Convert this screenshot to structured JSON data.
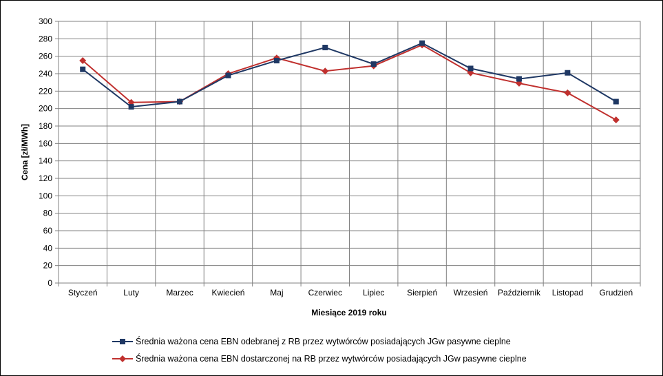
{
  "chart_data": {
    "type": "line",
    "xlabel": "Miesiące 2019  roku",
    "ylabel": "Cena [zł/MWh]",
    "ylim": [
      0,
      300
    ],
    "ytick_step": 20,
    "grid": true,
    "legend_position": "bottom",
    "categories": [
      "Styczeń",
      "Luty",
      "Marzec",
      "Kwiecień",
      "Maj",
      "Czerwiec",
      "Lipiec",
      "Sierpień",
      "Wrzesień",
      "Październik",
      "Listopad",
      "Grudzień"
    ],
    "series": [
      {
        "name": "Średnia ważona cena EBN odebranej z RB przez wytwórców posiadających JGw pasywne cieplne",
        "color": "#1f3864",
        "marker": "square",
        "values": [
          245,
          202,
          208,
          238,
          255,
          270,
          251,
          275,
          246,
          234,
          241,
          208
        ]
      },
      {
        "name": "Średnia ważona cena EBN dostarczonej na RB przez wytwórców posiadających JGw pasywne cieplne",
        "color": "#c0302e",
        "marker": "diamond",
        "values": [
          255,
          207,
          208,
          240,
          258,
          243,
          249,
          273,
          241,
          229,
          218,
          187
        ]
      }
    ]
  }
}
